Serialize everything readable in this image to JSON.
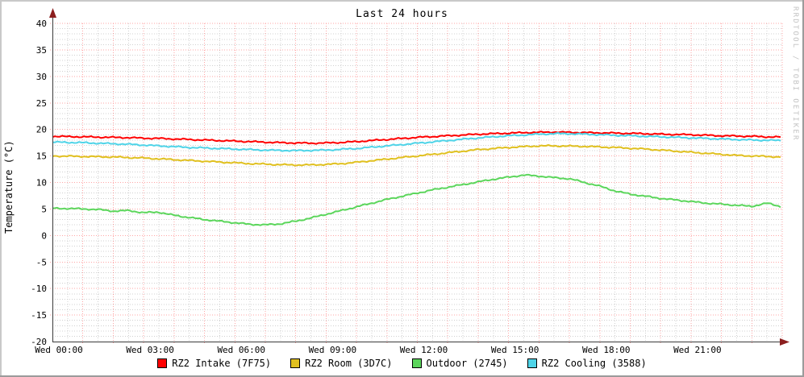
{
  "title": "Last 24 hours",
  "y_axis_label": "Temperature (°C)",
  "watermark": "RRDTOOL / TOBI OETIKER",
  "colors": {
    "intake": "#ff0000",
    "room": "#e0c020",
    "outdoor": "#5cd65c",
    "cooling": "#4fd4e8",
    "major_grid": "#ff0000",
    "minor_grid": "#999999",
    "axis": "#3a3a3a",
    "arrow": "#8b1e1e",
    "text": "#000000",
    "watermark_color": "#c3c3c3",
    "bevel_light": "#c9c9c9",
    "bevel_dark": "#9b9b9b",
    "canvas": "#ffffff"
  },
  "chart_data": {
    "type": "line",
    "title": "Last 24 hours",
    "xlabel": "",
    "ylabel": "Temperature (°C)",
    "ylim": [
      -20,
      40
    ],
    "xlim_hours": [
      0,
      24
    ],
    "grid": {
      "major_y_step": 5,
      "minor_y_step": 1,
      "major_x_step_hours": 1,
      "minor_x_step_hours": 0.5,
      "grid_on": true
    },
    "legend_position": "bottom",
    "y_ticks": [
      40,
      35,
      30,
      25,
      20,
      15,
      10,
      5,
      0,
      -5,
      -10,
      -15,
      -20
    ],
    "x_tick_hours": [
      0,
      3,
      6,
      9,
      12,
      15,
      18,
      21
    ],
    "x_tick_labels": [
      "Wed 00:00",
      "Wed 03:00",
      "Wed 06:00",
      "Wed 09:00",
      "Wed 12:00",
      "Wed 15:00",
      "Wed 18:00",
      "Wed 21:00"
    ],
    "x_hours": [
      0,
      0.5,
      1,
      1.5,
      2,
      2.5,
      3,
      3.5,
      4,
      4.5,
      5,
      5.5,
      6,
      6.5,
      7,
      7.5,
      8,
      8.5,
      9,
      9.5,
      10,
      10.5,
      11,
      11.5,
      12,
      12.5,
      13,
      13.5,
      14,
      14.5,
      15,
      15.5,
      16,
      16.5,
      17,
      17.5,
      18,
      18.5,
      19,
      19.5,
      20,
      20.5,
      21,
      21.5,
      22,
      22.5,
      23,
      23.5,
      24
    ],
    "series": [
      {
        "name": "RZ2 Intake (7F75)",
        "color": "#ff0000",
        "values": [
          18.7,
          18.65,
          18.6,
          18.55,
          18.5,
          18.45,
          18.35,
          18.3,
          18.2,
          18.1,
          18.0,
          17.9,
          17.8,
          17.7,
          17.6,
          17.5,
          17.45,
          17.4,
          17.45,
          17.55,
          17.7,
          17.9,
          18.1,
          18.3,
          18.5,
          18.65,
          18.8,
          18.95,
          19.1,
          19.2,
          19.3,
          19.4,
          19.45,
          19.5,
          19.45,
          19.4,
          19.35,
          19.3,
          19.25,
          19.2,
          19.1,
          19.05,
          19.0,
          18.9,
          18.8,
          18.75,
          18.7,
          18.6,
          18.55
        ]
      },
      {
        "name": "RZ2 Room (3D7C)",
        "color": "#e0c020",
        "values": [
          15.0,
          14.95,
          14.9,
          14.85,
          14.8,
          14.7,
          14.6,
          14.45,
          14.3,
          14.15,
          14.0,
          13.85,
          13.7,
          13.55,
          13.45,
          13.35,
          13.3,
          13.3,
          13.4,
          13.55,
          13.8,
          14.1,
          14.4,
          14.7,
          15.0,
          15.3,
          15.6,
          15.9,
          16.2,
          16.4,
          16.6,
          16.75,
          16.9,
          16.9,
          16.85,
          16.8,
          16.7,
          16.6,
          16.45,
          16.3,
          16.1,
          15.9,
          15.7,
          15.5,
          15.3,
          15.1,
          15.0,
          14.9,
          14.8
        ]
      },
      {
        "name": "Outdoor (2745)",
        "color": "#5cd65c",
        "values": [
          5.1,
          5.1,
          5.0,
          4.9,
          4.6,
          4.7,
          4.3,
          4.4,
          3.8,
          3.4,
          3.0,
          2.7,
          2.4,
          2.1,
          2.0,
          2.2,
          2.7,
          3.3,
          4.0,
          4.7,
          5.4,
          6.1,
          6.8,
          7.4,
          8.0,
          8.6,
          9.1,
          9.6,
          10.1,
          10.6,
          11.0,
          11.4,
          11.2,
          10.9,
          10.7,
          10.0,
          9.3,
          8.4,
          7.8,
          7.4,
          7.0,
          6.7,
          6.4,
          6.1,
          5.9,
          5.7,
          5.5,
          6.1,
          5.4
        ]
      },
      {
        "name": "RZ2 Cooling (3588)",
        "color": "#4fd4e8",
        "values": [
          17.6,
          17.55,
          17.5,
          17.4,
          17.3,
          17.2,
          17.05,
          16.9,
          16.75,
          16.6,
          16.5,
          16.4,
          16.3,
          16.2,
          16.1,
          16.05,
          16.0,
          16.05,
          16.1,
          16.25,
          16.4,
          16.65,
          16.9,
          17.15,
          17.4,
          17.65,
          17.9,
          18.15,
          18.4,
          18.6,
          18.8,
          18.95,
          19.1,
          19.2,
          19.2,
          19.1,
          19.0,
          18.9,
          18.8,
          18.7,
          18.6,
          18.5,
          18.4,
          18.3,
          18.2,
          18.1,
          18.0,
          17.95,
          17.9
        ]
      }
    ]
  }
}
